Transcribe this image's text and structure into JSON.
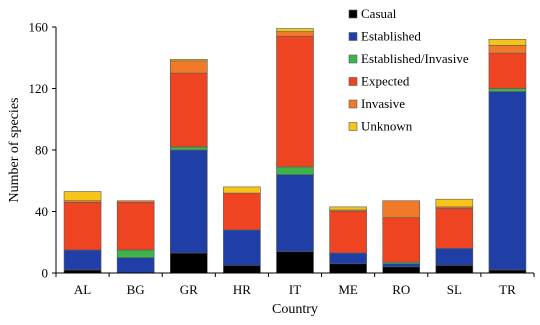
{
  "chart_data": {
    "type": "bar",
    "stacked": true,
    "title": "",
    "xlabel": "Country",
    "ylabel": "Number of species",
    "categories": [
      "AL",
      "BG",
      "GR",
      "HR",
      "IT",
      "ME",
      "RO",
      "SL",
      "TR"
    ],
    "ylim": [
      0,
      160
    ],
    "yticks": [
      "0",
      "40",
      "80",
      "120",
      "160"
    ],
    "grid": false,
    "legend_position": "top-right",
    "series": [
      {
        "name": "Casual",
        "color": "#000000",
        "values": [
          2,
          0,
          13,
          5,
          14,
          6,
          4,
          5,
          2
        ]
      },
      {
        "name": "Established",
        "color": "#1f3fa6",
        "values": [
          13,
          10,
          67,
          23,
          50,
          7,
          2,
          11,
          116
        ]
      },
      {
        "name": "Established/Invasive",
        "color": "#3cb44b",
        "values": [
          0,
          5,
          2,
          0,
          5,
          0,
          1,
          0,
          2
        ]
      },
      {
        "name": "Expected",
        "color": "#ee4422",
        "values": [
          31,
          31,
          48,
          24,
          85,
          27,
          29,
          26,
          23
        ]
      },
      {
        "name": "Invasive",
        "color": "#f07a2a",
        "values": [
          1,
          1,
          8,
          0,
          3,
          1,
          11,
          1,
          5
        ]
      },
      {
        "name": "Unknown",
        "color": "#f7c51a",
        "values": [
          6,
          0,
          1,
          4,
          2,
          2,
          0,
          5,
          4
        ]
      }
    ]
  }
}
